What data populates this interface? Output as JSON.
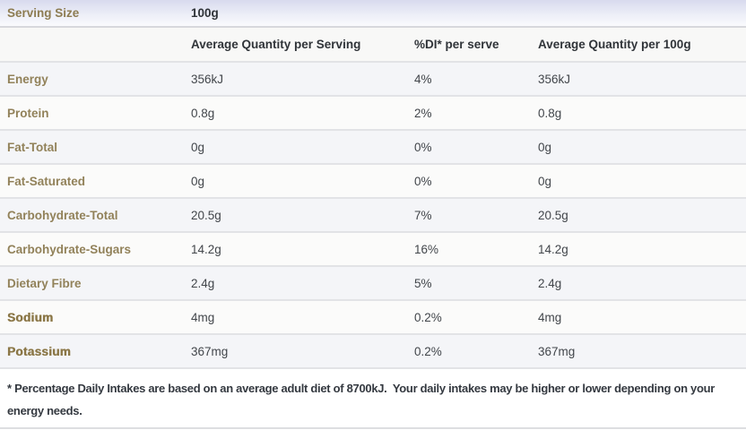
{
  "theme": {
    "label_color": "#8d7c52",
    "strong_label_color": "#8b7747",
    "value_color": "#42464b",
    "header_text_color": "#303439",
    "serving_row_gradient_top": "#d8daee",
    "row_tint_color": "#f4f5f8",
    "row_plain_color": "#fbfbfa",
    "divider_color": "#e2e3e6"
  },
  "table": {
    "serving": {
      "label": "Serving Size",
      "value": "100g"
    },
    "columns": {
      "per_serving": "Average Quantity per Serving",
      "di": "%DI* per serve",
      "per_100g": "Average Quantity per 100g"
    },
    "rows": [
      {
        "label": "Energy",
        "per_serving": "356kJ",
        "di": "4%",
        "per_100g": "356kJ"
      },
      {
        "label": "Protein",
        "per_serving": "0.8g",
        "di": "2%",
        "per_100g": "0.8g"
      },
      {
        "label": "Fat-Total",
        "per_serving": "0g",
        "di": "0%",
        "per_100g": "0g"
      },
      {
        "label": "Fat-Saturated",
        "per_serving": "0g",
        "di": "0%",
        "per_100g": "0g"
      },
      {
        "label": "Carbohydrate-Total",
        "per_serving": "20.5g",
        "di": "7%",
        "per_100g": "20.5g"
      },
      {
        "label": "Carbohydrate-Sugars",
        "per_serving": "14.2g",
        "di": "16%",
        "per_100g": "14.2g"
      },
      {
        "label": "Dietary Fibre",
        "per_serving": "2.4g",
        "di": "5%",
        "per_100g": "2.4g"
      },
      {
        "label": "Sodium",
        "per_serving": "4mg",
        "di": "0.2%",
        "per_100g": "4mg"
      },
      {
        "label": "Potassium",
        "per_serving": "367mg",
        "di": "0.2%",
        "per_100g": "367mg"
      }
    ]
  },
  "footnote": "* Percentage Daily Intakes are based on an average adult diet of 8700kJ.  Your daily intakes may be higher or lower depending on your energy needs."
}
